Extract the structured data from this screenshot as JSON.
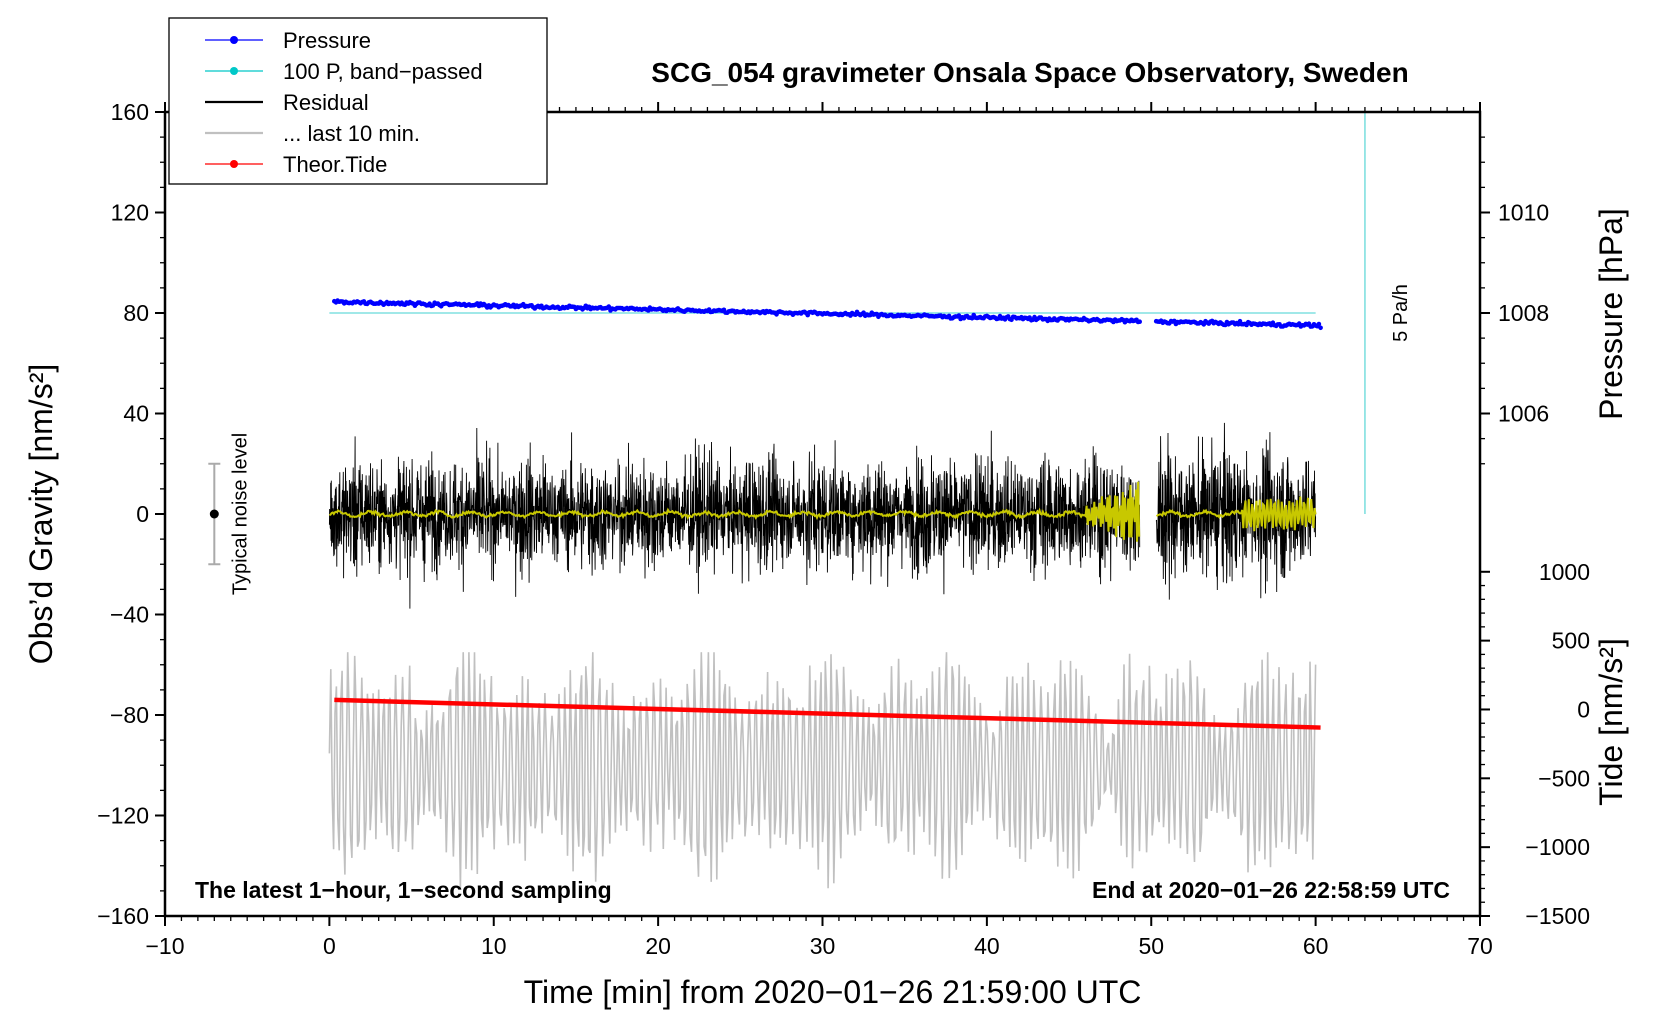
{
  "chart_data": {
    "type": "line",
    "title": "SCG_054 gravimeter Onsala Space Observatory, Sweden",
    "xlabel": "Time [min] from 2020−01−26 21:59:00 UTC",
    "ylabel_left": "Obs’d Gravity [nm/s²]",
    "ylabel_right_top": "Pressure [hPa]",
    "ylabel_right_bottom": "Tide [nm/s²]",
    "xlim": [
      -10,
      70
    ],
    "ylim": [
      -160,
      160
    ],
    "xticks": [
      -10,
      0,
      10,
      20,
      30,
      40,
      50,
      60,
      70
    ],
    "xtick_labels": [
      "−10",
      "0",
      "10",
      "20",
      "30",
      "40",
      "50",
      "60",
      "70"
    ],
    "yticks": [
      -160,
      -120,
      -80,
      -40,
      0,
      40,
      80,
      120,
      160
    ],
    "ytick_labels": [
      "−160",
      "−120",
      "−80",
      "−40",
      "0",
      "40",
      "80",
      "120",
      "160"
    ],
    "pressure_axis": {
      "ticks": [
        1006,
        1008,
        1010
      ],
      "labels": [
        "1006",
        "1008",
        "1010"
      ],
      "gravity_at_1006": 40,
      "gravity_per_hpa": 20
    },
    "tide_axis": {
      "ticks": [
        1000,
        500,
        0,
        -500,
        -1000,
        -1500
      ],
      "labels": [
        "1000",
        "500",
        "0",
        "−500",
        "−1000",
        "−1500"
      ],
      "gravity_at_1500": -160,
      "gravity_per_nms2": 0.0548
    },
    "legend": {
      "position": "top-left",
      "entries": [
        {
          "label": "Pressure",
          "color": "#0000ff"
        },
        {
          "label": "100 P, band−passed",
          "color": "#00c8c8"
        },
        {
          "label": "Residual",
          "color": "#000000"
        },
        {
          "label": "... last 10 min.",
          "color": "#c0c0c0"
        },
        {
          "label": "Theor.Tide",
          "color": "#ff0000"
        }
      ]
    },
    "series": [
      {
        "name": "Pressure",
        "color": "#0000ff",
        "x_range": [
          0.3,
          60.3
        ],
        "gap": [
          49.3,
          50.3
        ],
        "y_start": 84.5,
        "y_end": 75
      },
      {
        "name": "100 P, band-passed",
        "color": "#80e0e0",
        "x_range": [
          0,
          60
        ],
        "y": 80
      },
      {
        "name": "Residual",
        "color": "#000000",
        "x_range": [
          0,
          60
        ],
        "gap": [
          49.3,
          50.3
        ],
        "amplitude": 30
      },
      {
        "name": "Smoothed residual",
        "color": "#c8c800",
        "x_range": [
          0,
          60
        ],
        "gap": [
          49.3,
          50.3
        ],
        "y": 0
      },
      {
        "name": "... last 10 min.",
        "color": "#c0c0c0",
        "x_range": [
          0,
          60
        ],
        "center": -100,
        "amplitude": 40
      },
      {
        "name": "Theor.Tide",
        "color": "#ff0000",
        "x_range": [
          0.3,
          60.3
        ],
        "y_start": -74,
        "y_end": -85
      }
    ],
    "noise_bar": {
      "label": "Typical noise level",
      "x": -7,
      "center": 0,
      "half_range": 20
    },
    "rate_bar": {
      "label": "5 Pa/h",
      "x": 63,
      "from": 0,
      "to": 160,
      "color": "#80e0e0"
    },
    "annotations": {
      "bottom_left": "The latest 1−hour, 1−second sampling",
      "bottom_right": "End at 2020−01−26 22:58:59 UTC"
    }
  }
}
